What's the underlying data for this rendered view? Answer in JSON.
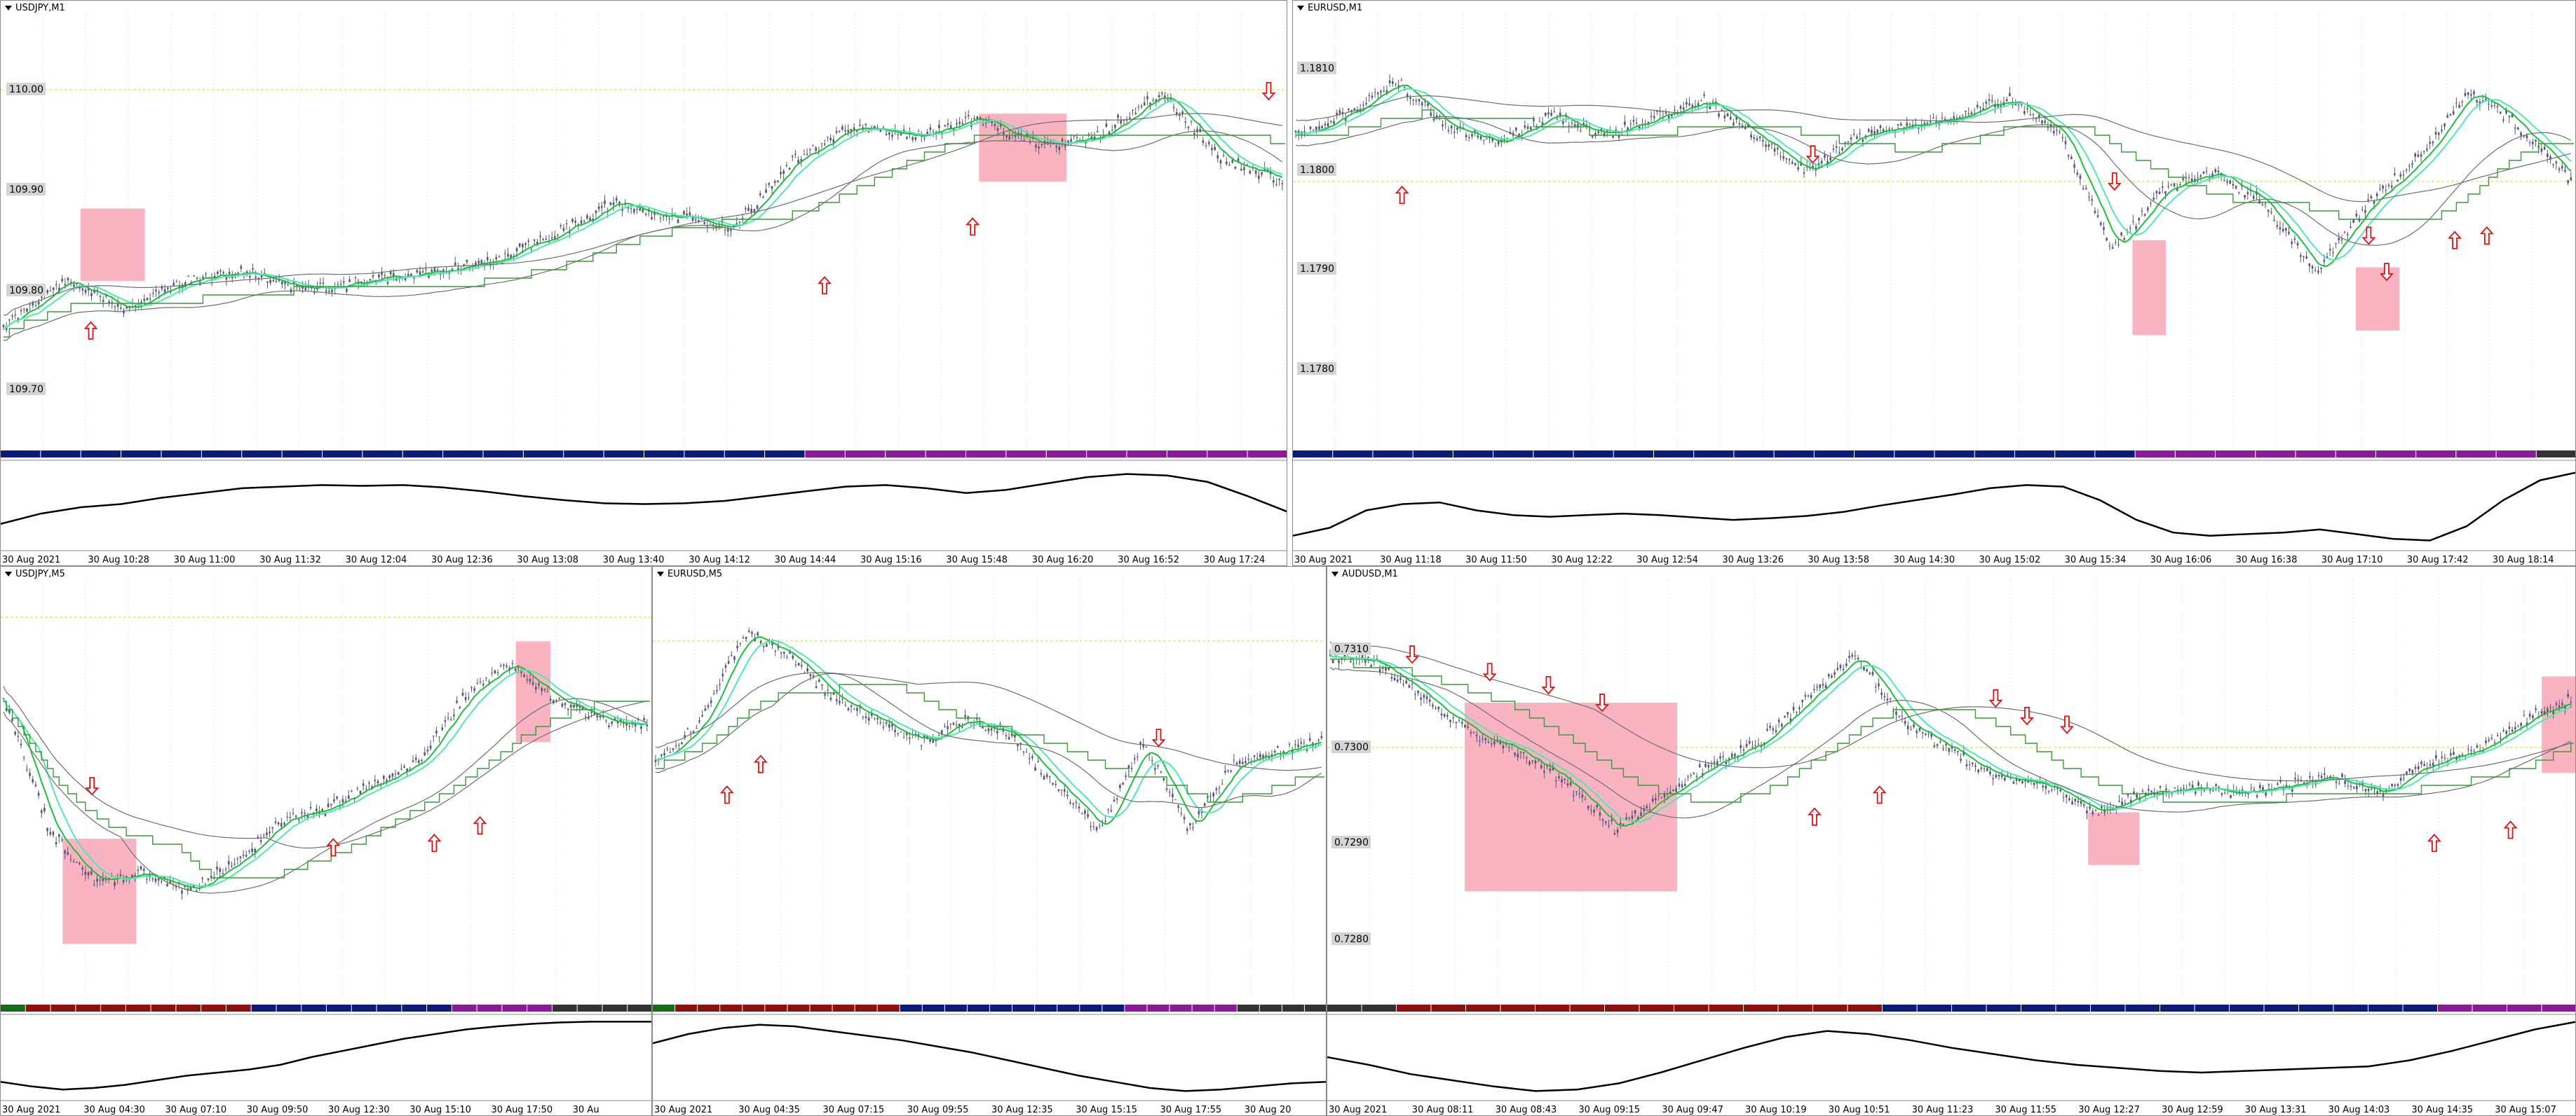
{
  "colors": {
    "background": "#ffffff",
    "candle": "#555577",
    "ma_fast": "#1dbf3a",
    "ma_cyan": "#4ee8b0",
    "ma_slow": "#6e6e6e",
    "step_line": "#3a9a3a",
    "level_line": "#eeee88",
    "zone": "#f9a6b6",
    "arrow": "#e01010",
    "oscillator": "#000000",
    "strip_blue": "#0c1a7a",
    "strip_purple": "#8a1a9a",
    "strip_red": "#8c1010",
    "strip_green": "#1a6a1a",
    "strip_gray": "#333333"
  },
  "panels": [
    {
      "title": "USDJPY,M1",
      "price_labels": [
        "110.00",
        "109.90",
        "109.80",
        "109.70"
      ],
      "time_labels": [
        "30 Aug 2021",
        "30 Aug 10:28",
        "30 Aug 11:00",
        "30 Aug 11:32",
        "30 Aug 12:04",
        "30 Aug 12:36",
        "30 Aug 13:08",
        "30 Aug 13:40",
        "30 Aug 14:12",
        "30 Aug 14:44",
        "30 Aug 15:16",
        "30 Aug 15:48",
        "30 Aug 16:20",
        "30 Aug 16:52",
        "30 Aug 17:24"
      ],
      "arrows": [
        {
          "dir": "up",
          "at": 0.07,
          "y": 0.73
        },
        {
          "dir": "up",
          "at": 0.64,
          "y": 0.63
        },
        {
          "dir": "up",
          "at": 0.755,
          "y": 0.5
        },
        {
          "dir": "down",
          "at": 0.985,
          "y": 0.2
        }
      ],
      "zones": [
        {
          "from": 0.062,
          "to": 0.112,
          "top": 0.46,
          "bottom": 0.62
        },
        {
          "from": 0.76,
          "to": 0.828,
          "top": 0.25,
          "bottom": 0.4
        }
      ],
      "strip": [
        "blue",
        "blue",
        "blue",
        "blue",
        "blue",
        "blue",
        "blue",
        "blue",
        "blue",
        "blue",
        "blue",
        "blue",
        "blue",
        "blue",
        "blue",
        "blue",
        "blue",
        "blue",
        "blue",
        "blue",
        "purple",
        "purple",
        "purple",
        "purple",
        "purple",
        "purple",
        "purple",
        "purple",
        "purple",
        "purple",
        "purple",
        "purple"
      ],
      "osc": [
        0.25,
        0.38,
        0.46,
        0.5,
        0.58,
        0.64,
        0.7,
        0.72,
        0.74,
        0.73,
        0.74,
        0.71,
        0.66,
        0.6,
        0.55,
        0.51,
        0.5,
        0.51,
        0.54,
        0.6,
        0.66,
        0.72,
        0.74,
        0.7,
        0.64,
        0.68,
        0.76,
        0.84,
        0.88,
        0.86,
        0.78,
        0.6,
        0.4
      ]
    },
    {
      "title": "EURUSD,M1",
      "price_labels": [
        "1.1810",
        "1.1800",
        "1.1790",
        "1.1780"
      ],
      "time_labels": [
        "30 Aug 2021",
        "30 Aug 11:18",
        "30 Aug 11:50",
        "30 Aug 12:22",
        "30 Aug 12:54",
        "30 Aug 13:26",
        "30 Aug 13:58",
        "30 Aug 14:30",
        "30 Aug 15:02",
        "30 Aug 15:34",
        "30 Aug 16:06",
        "30 Aug 16:38",
        "30 Aug 17:10",
        "30 Aug 17:42",
        "30 Aug 18:14"
      ],
      "arrows": [
        {
          "dir": "up",
          "at": 0.085,
          "y": 0.43
        },
        {
          "dir": "down",
          "at": 0.405,
          "y": 0.34
        },
        {
          "dir": "down",
          "at": 0.64,
          "y": 0.4
        },
        {
          "dir": "down",
          "at": 0.838,
          "y": 0.52
        },
        {
          "dir": "down",
          "at": 0.852,
          "y": 0.6
        },
        {
          "dir": "up",
          "at": 0.905,
          "y": 0.53
        },
        {
          "dir": "up",
          "at": 0.93,
          "y": 0.52
        }
      ],
      "zones": [
        {
          "from": 0.654,
          "to": 0.68,
          "top": 0.53,
          "bottom": 0.74
        },
        {
          "from": 0.828,
          "to": 0.862,
          "top": 0.59,
          "bottom": 0.73
        }
      ],
      "strip": [
        "blue",
        "blue",
        "blue",
        "blue",
        "blue",
        "blue",
        "blue",
        "blue",
        "blue",
        "blue",
        "blue",
        "blue",
        "blue",
        "blue",
        "blue",
        "blue",
        "blue",
        "blue",
        "blue",
        "blue",
        "blue",
        "purple",
        "purple",
        "purple",
        "purple",
        "purple",
        "purple",
        "purple",
        "purple",
        "purple",
        "purple",
        "gray"
      ],
      "osc": [
        0.1,
        0.2,
        0.42,
        0.5,
        0.52,
        0.42,
        0.36,
        0.34,
        0.36,
        0.38,
        0.36,
        0.33,
        0.3,
        0.32,
        0.35,
        0.4,
        0.48,
        0.55,
        0.62,
        0.7,
        0.74,
        0.72,
        0.55,
        0.3,
        0.14,
        0.1,
        0.12,
        0.14,
        0.18,
        0.12,
        0.06,
        0.04,
        0.22,
        0.55,
        0.8,
        0.9
      ]
    },
    {
      "title": "USDJPY,M5",
      "price_labels": [],
      "time_labels": [
        "30 Aug 2021",
        "30 Aug 04:30",
        "30 Aug 07:10",
        "30 Aug 09:50",
        "30 Aug 12:30",
        "30 Aug 15:10",
        "30 Aug 17:50",
        "30 Au"
      ],
      "arrows": [
        {
          "dir": "down",
          "at": 0.14,
          "y": 0.5
        },
        {
          "dir": "up",
          "at": 0.51,
          "y": 0.64
        },
        {
          "dir": "up",
          "at": 0.665,
          "y": 0.63
        },
        {
          "dir": "up",
          "at": 0.735,
          "y": 0.59
        }
      ],
      "zones": [
        {
          "from": 0.095,
          "to": 0.208,
          "top": 0.62,
          "bottom": 0.86
        },
        {
          "from": 0.79,
          "to": 0.843,
          "top": 0.17,
          "bottom": 0.4
        }
      ],
      "strip": [
        "green",
        "red",
        "red",
        "red",
        "red",
        "red",
        "red",
        "red",
        "red",
        "red",
        "blue",
        "blue",
        "blue",
        "blue",
        "blue",
        "blue",
        "blue",
        "blue",
        "purple",
        "purple",
        "purple",
        "purple",
        "gray",
        "gray",
        "gray",
        "gray"
      ],
      "osc": [
        0.18,
        0.12,
        0.08,
        0.1,
        0.14,
        0.2,
        0.26,
        0.3,
        0.34,
        0.4,
        0.5,
        0.58,
        0.66,
        0.74,
        0.8,
        0.86,
        0.9,
        0.93,
        0.95,
        0.96,
        0.96,
        0.96
      ]
    },
    {
      "title": "EURUSD,M5",
      "price_labels": [],
      "time_labels": [
        "30 Aug 2021",
        "30 Aug 04:35",
        "30 Aug 07:15",
        "30 Aug 09:55",
        "30 Aug 12:35",
        "30 Aug 15:15",
        "30 Aug 17:55",
        "30 Aug 20"
      ],
      "arrows": [
        {
          "dir": "up",
          "at": 0.11,
          "y": 0.52
        },
        {
          "dir": "up",
          "at": 0.16,
          "y": 0.45
        },
        {
          "dir": "down",
          "at": 0.75,
          "y": 0.39
        }
      ],
      "zones": [],
      "strip": [
        "green",
        "red",
        "red",
        "red",
        "red",
        "red",
        "red",
        "red",
        "red",
        "red",
        "red",
        "blue",
        "blue",
        "blue",
        "blue",
        "blue",
        "blue",
        "blue",
        "blue",
        "blue",
        "blue",
        "purple",
        "purple",
        "purple",
        "purple",
        "purple",
        "gray",
        "gray",
        "gray",
        "gray"
      ],
      "osc": [
        0.68,
        0.8,
        0.88,
        0.92,
        0.9,
        0.84,
        0.78,
        0.72,
        0.64,
        0.56,
        0.46,
        0.36,
        0.26,
        0.18,
        0.1,
        0.06,
        0.08,
        0.12,
        0.16,
        0.18
      ]
    },
    {
      "title": "AUDUSD,M1",
      "price_labels": [
        "0.7310",
        "0.7300",
        "0.7290",
        "0.7280"
      ],
      "time_labels": [
        "30 Aug 2021",
        "30 Aug 08:11",
        "30 Aug 08:43",
        "30 Aug 09:15",
        "30 Aug 09:47",
        "30 Aug 10:19",
        "30 Aug 10:51",
        "30 Aug 11:23",
        "30 Aug 11:55",
        "30 Aug 12:27",
        "30 Aug 12:59",
        "30 Aug 13:31",
        "30 Aug 14:03",
        "30 Aug 14:35",
        "30 Aug 15:07"
      ],
      "arrows": [
        {
          "dir": "down",
          "at": 0.068,
          "y": 0.2
        },
        {
          "dir": "down",
          "at": 0.13,
          "y": 0.24
        },
        {
          "dir": "down",
          "at": 0.177,
          "y": 0.27
        },
        {
          "dir": "down",
          "at": 0.22,
          "y": 0.31
        },
        {
          "dir": "down",
          "at": 0.535,
          "y": 0.3
        },
        {
          "dir": "down",
          "at": 0.56,
          "y": 0.34
        },
        {
          "dir": "down",
          "at": 0.592,
          "y": 0.36
        },
        {
          "dir": "up",
          "at": 0.442,
          "y": 0.52
        },
        {
          "dir": "up",
          "at": 0.39,
          "y": 0.57
        },
        {
          "dir": "up",
          "at": 0.886,
          "y": 0.63
        },
        {
          "dir": "up",
          "at": 0.947,
          "y": 0.6
        }
      ],
      "zones": [
        {
          "from": 0.11,
          "to": 0.28,
          "top": 0.31,
          "bottom": 0.74
        },
        {
          "from": 0.609,
          "to": 0.65,
          "top": 0.56,
          "bottom": 0.68
        },
        {
          "from": 0.972,
          "to": 1.0,
          "top": 0.25,
          "bottom": 0.47
        }
      ],
      "strip": [
        "gray",
        "gray",
        "red",
        "red",
        "red",
        "red",
        "red",
        "red",
        "red",
        "red",
        "red",
        "red",
        "red",
        "red",
        "red",
        "red",
        "blue",
        "blue",
        "blue",
        "blue",
        "blue",
        "blue",
        "blue",
        "blue",
        "blue",
        "blue",
        "blue",
        "blue",
        "blue",
        "blue",
        "blue",
        "blue",
        "purple",
        "purple",
        "purple",
        "purple"
      ],
      "osc": [
        0.5,
        0.4,
        0.28,
        0.2,
        0.12,
        0.06,
        0.08,
        0.16,
        0.3,
        0.46,
        0.62,
        0.76,
        0.84,
        0.8,
        0.72,
        0.62,
        0.54,
        0.46,
        0.4,
        0.36,
        0.32,
        0.3,
        0.32,
        0.34,
        0.36,
        0.38,
        0.46,
        0.58,
        0.72,
        0.86,
        0.96
      ]
    }
  ]
}
